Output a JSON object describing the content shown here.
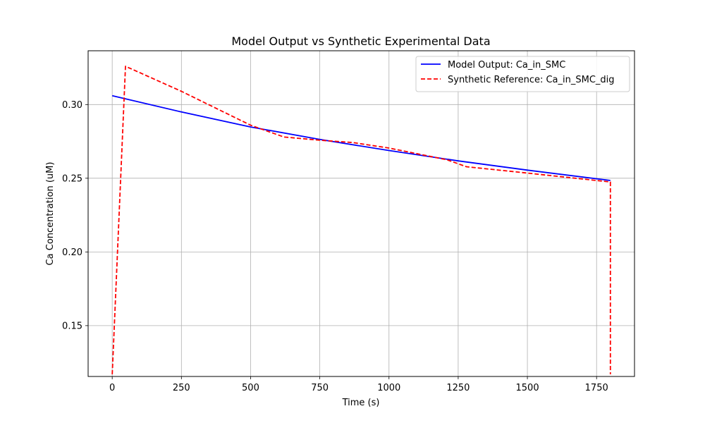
{
  "chart_data": {
    "type": "line",
    "title": "Model Output vs Synthetic Experimental Data",
    "xlabel": "Time (s)",
    "ylabel": "Ca Concentration (uM)",
    "xlim": [
      -87,
      1887
    ],
    "ylim": [
      0.1155,
      0.3365
    ],
    "xticks": [
      0,
      250,
      500,
      750,
      1000,
      1250,
      1500,
      1750
    ],
    "xtick_labels": [
      "0",
      "250",
      "500",
      "750",
      "1000",
      "1250",
      "1500",
      "1750"
    ],
    "yticks": [
      0.15,
      0.2,
      0.25,
      0.3
    ],
    "ytick_labels": [
      "0.15",
      "0.20",
      "0.25",
      "0.30"
    ],
    "grid": true,
    "legend_position": "top-right",
    "series": [
      {
        "name": "Model Output: Ca_in_SMC",
        "color": "#0000ff",
        "style": "solid",
        "x": [
          0,
          250,
          500,
          750,
          1000,
          1250,
          1500,
          1800
        ],
        "y": [
          0.306,
          0.295,
          0.2848,
          0.2763,
          0.2688,
          0.2618,
          0.2555,
          0.2485
        ]
      },
      {
        "name": "Synthetic Reference: Ca_in_SMC_dig",
        "color": "#ff0000",
        "style": "dashed",
        "x": [
          0,
          48,
          250,
          500,
          620,
          750,
          870,
          1000,
          1150,
          1210,
          1280,
          1500,
          1800,
          1800
        ],
        "y": [
          0.117,
          0.326,
          0.309,
          0.286,
          0.278,
          0.2758,
          0.2742,
          0.2705,
          0.2648,
          0.2625,
          0.2578,
          0.2535,
          0.2475,
          0.117
        ]
      }
    ]
  }
}
